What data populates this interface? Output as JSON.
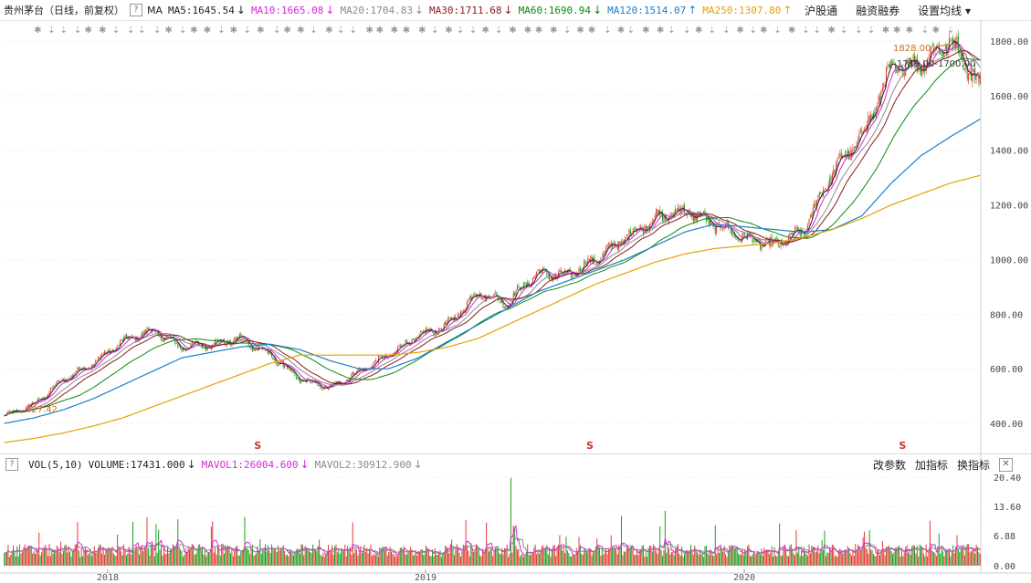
{
  "header": {
    "title": "贵州茅台（日线，前复权）",
    "help": "?",
    "ma_label": "MA",
    "ma": [
      {
        "text": "MA5:1645.54",
        "arrow": "↓",
        "color": "#222222"
      },
      {
        "text": "MA10:1665.08",
        "arrow": "↓",
        "color": "#d629d6"
      },
      {
        "text": "MA20:1704.83",
        "arrow": "↓",
        "color": "#8a8a8a"
      },
      {
        "text": "MA30:1711.68",
        "arrow": "↓",
        "color": "#8b1a1a"
      },
      {
        "text": "MA60:1690.94",
        "arrow": "↓",
        "color": "#0a8a0a"
      },
      {
        "text": "MA120:1514.07",
        "arrow": "↑",
        "color": "#1a7fcc"
      },
      {
        "text": "MA250:1307.80",
        "arrow": "↑",
        "color": "#e6a100"
      }
    ],
    "menu": [
      "沪股通",
      "融资融券",
      "设置均线"
    ]
  },
  "volume_header": {
    "help": "?",
    "label": "VOL(5,10)",
    "volume": "VOLUME:17431.000",
    "mavol1": "MAVOL1:26004.600",
    "mavol2": "MAVOL2:30912.900",
    "menu": [
      "改参数",
      "加指标",
      "换指标"
    ],
    "close": "✕"
  },
  "annotations": {
    "high_label": "1828.00",
    "range_label": "1719.00-1700.00",
    "low_label": "427.42",
    "event_marker": "S"
  },
  "colors": {
    "up": "#e8352e",
    "down": "#1a9e1a",
    "ma5": "#222222",
    "ma10": "#d629d6",
    "ma20": "#8a8a8a",
    "ma30": "#8b1a1a",
    "ma60": "#0a8a0a",
    "ma120": "#1a7fcc",
    "ma250": "#e6a100",
    "mavol1": "#d629d6",
    "mavol2": "#8a8a8a"
  },
  "chart_data": [
    {
      "type": "candlestick",
      "title": "贵州茅台（日线，前复权）",
      "x_labels": [
        "2018",
        "2019",
        "2020"
      ],
      "y_ticks": [
        400,
        600,
        800,
        1000,
        1200,
        1400,
        1600,
        1800
      ],
      "ylim": [
        300,
        1870
      ],
      "grid": true,
      "period_ends": [
        "2017-10",
        "2018-01",
        "2018-06",
        "2018-10",
        "2019-01",
        "2019-04",
        "2019-07",
        "2019-10",
        "2020-01",
        "2020-03",
        "2020-06",
        "2020-08",
        "2020-09",
        "2020-10"
      ],
      "close_series": [
        427,
        470,
        560,
        620,
        700,
        740,
        680,
        690,
        710,
        650,
        560,
        530,
        590,
        650,
        720,
        760,
        880,
        840,
        950,
        940,
        1000,
        1080,
        1150,
        1180,
        1130,
        1080,
        1050,
        1100,
        1320,
        1450,
        1700,
        1720,
        1800,
        1640
      ],
      "ma120": [
        400,
        420,
        450,
        490,
        540,
        590,
        640,
        660,
        680,
        690,
        670,
        630,
        600,
        600,
        640,
        700,
        760,
        820,
        880,
        920,
        960,
        1000,
        1050,
        1100,
        1130,
        1120,
        1110,
        1100,
        1110,
        1160,
        1280,
        1380,
        1450,
        1514
      ],
      "ma250": [
        330,
        345,
        365,
        390,
        420,
        460,
        500,
        540,
        580,
        620,
        650,
        650,
        650,
        650,
        660,
        680,
        710,
        760,
        810,
        860,
        910,
        950,
        990,
        1020,
        1040,
        1050,
        1060,
        1080,
        1110,
        1150,
        1200,
        1240,
        1280,
        1308
      ],
      "markers": [
        {
          "x_frac": 0.26,
          "label": "S"
        },
        {
          "x_frac": 0.6,
          "label": "S"
        },
        {
          "x_frac": 0.92,
          "label": "S"
        }
      ]
    },
    {
      "type": "bar",
      "title": "VOL(5,10)",
      "y_ticks": [
        0,
        6.88,
        13.6,
        20.4
      ],
      "ylim": [
        0,
        21
      ],
      "note": "volume bars in 万 units"
    }
  ]
}
